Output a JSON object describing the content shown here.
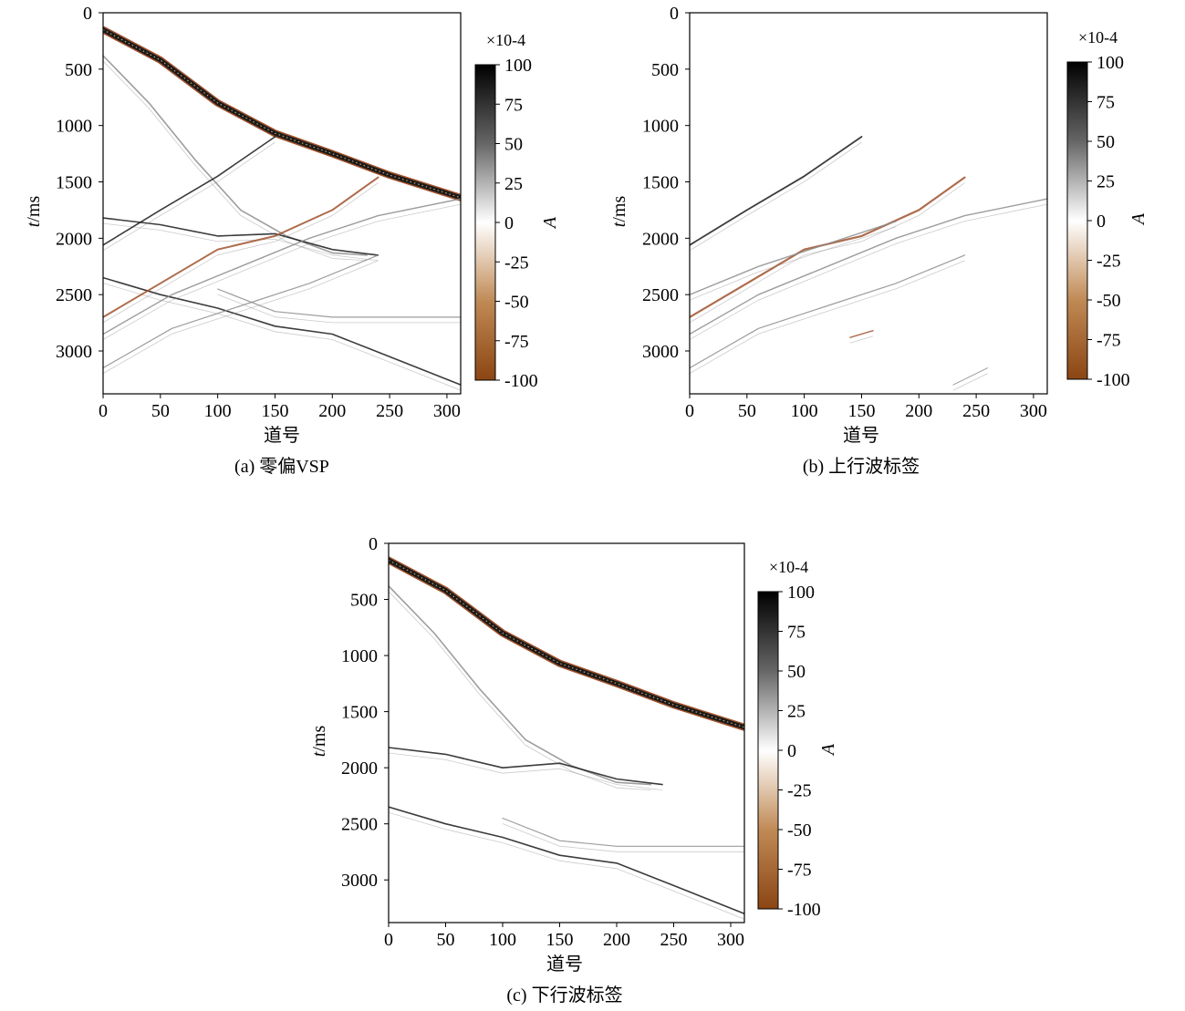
{
  "colors": {
    "background": "#ffffff",
    "axis": "#000000",
    "positive": "#000000",
    "zero": "#ffffff",
    "negative": "#8b4513",
    "event_dark": "#1a1a1a",
    "event_brown": "#a0522d",
    "event_gray": "#8c8c8c"
  },
  "chart_data": [
    {
      "type": "heatmap",
      "panel": "a",
      "caption": "(a) 零偏VSP",
      "xlabel": "道号",
      "ylabel_italic": "t",
      "ylabel_unit": "/ms",
      "xlim": [
        0,
        312
      ],
      "ylim": [
        3380,
        0
      ],
      "xticks": [
        "0",
        "50",
        "100",
        "150",
        "200",
        "250",
        "300"
      ],
      "xtick_values": [
        0,
        50,
        100,
        150,
        200,
        250,
        300
      ],
      "yticks": [
        "0",
        "500",
        "1000",
        "1500",
        "2000",
        "2500",
        "3000"
      ],
      "ytick_values": [
        0,
        500,
        1000,
        1500,
        2000,
        2500,
        3000
      ],
      "colorbar": {
        "label": "A",
        "multiplier": "×10-4",
        "range": [
          -100,
          100
        ],
        "ticks": [
          "100",
          "75",
          "50",
          "25",
          "0",
          "-25",
          "-50",
          "-75",
          "-100"
        ],
        "tick_values": [
          100,
          75,
          50,
          25,
          0,
          -25,
          -50,
          -75,
          -100
        ]
      },
      "events": [
        {
          "kind": "first-break",
          "color": "event_brown",
          "weight": 6,
          "points": [
            [
              0,
              150
            ],
            [
              50,
              420
            ],
            [
              100,
              800
            ],
            [
              150,
              1070
            ],
            [
              200,
              1250
            ],
            [
              250,
              1440
            ],
            [
              312,
              1640
            ]
          ]
        },
        {
          "kind": "downgoing",
          "color": "event_gray",
          "weight": 1.6,
          "points": [
            [
              0,
              380
            ],
            [
              40,
              800
            ],
            [
              80,
              1300
            ],
            [
              120,
              1750
            ],
            [
              160,
              1980
            ],
            [
              200,
              2130
            ],
            [
              230,
              2150
            ]
          ]
        },
        {
          "kind": "downgoing",
          "color": "event_dark",
          "weight": 1.6,
          "points": [
            [
              0,
              1820
            ],
            [
              50,
              1880
            ],
            [
              100,
              1980
            ],
            [
              150,
              1960
            ],
            [
              200,
              2100
            ],
            [
              240,
              2150
            ]
          ]
        },
        {
          "kind": "downgoing",
          "color": "event_dark",
          "weight": 1.6,
          "points": [
            [
              0,
              2350
            ],
            [
              50,
              2500
            ],
            [
              100,
              2620
            ],
            [
              150,
              2780
            ],
            [
              200,
              2850
            ],
            [
              250,
              3050
            ],
            [
              312,
              3300
            ]
          ]
        },
        {
          "kind": "downgoing",
          "color": "event_gray",
          "weight": 1.2,
          "points": [
            [
              100,
              2450
            ],
            [
              150,
              2650
            ],
            [
              200,
              2700
            ],
            [
              250,
              2700
            ],
            [
              312,
              2700
            ]
          ]
        },
        {
          "kind": "upgoing",
          "color": "event_dark",
          "weight": 1.6,
          "points": [
            [
              0,
              2060
            ],
            [
              50,
              1750
            ],
            [
              100,
              1450
            ],
            [
              150,
              1100
            ]
          ]
        },
        {
          "kind": "upgoing",
          "color": "event_brown",
          "weight": 2,
          "points": [
            [
              0,
              2700
            ],
            [
              50,
              2400
            ],
            [
              100,
              2100
            ],
            [
              150,
              1980
            ],
            [
              200,
              1750
            ],
            [
              240,
              1460
            ]
          ]
        },
        {
          "kind": "upgoing",
          "color": "event_gray",
          "weight": 1.4,
          "points": [
            [
              0,
              2850
            ],
            [
              60,
              2500
            ],
            [
              120,
              2250
            ],
            [
              180,
              2000
            ],
            [
              240,
              1800
            ],
            [
              312,
              1650
            ]
          ]
        },
        {
          "kind": "upgoing",
          "color": "event_gray",
          "weight": 1.2,
          "points": [
            [
              0,
              3150
            ],
            [
              60,
              2800
            ],
            [
              120,
              2600
            ],
            [
              180,
              2400
            ],
            [
              240,
              2150
            ]
          ]
        }
      ]
    },
    {
      "type": "heatmap",
      "panel": "b",
      "caption": "(b) 上行波标签",
      "xlabel": "道号",
      "ylabel_italic": "t",
      "ylabel_unit": "/ms",
      "xlim": [
        0,
        312
      ],
      "ylim": [
        3380,
        0
      ],
      "xticks": [
        "0",
        "50",
        "100",
        "150",
        "200",
        "250",
        "300"
      ],
      "xtick_values": [
        0,
        50,
        100,
        150,
        200,
        250,
        300
      ],
      "yticks": [
        "0",
        "500",
        "1000",
        "1500",
        "2000",
        "2500",
        "3000"
      ],
      "ytick_values": [
        0,
        500,
        1000,
        1500,
        2000,
        2500,
        3000
      ],
      "colorbar": {
        "label": "A",
        "multiplier": "×10-4",
        "range": [
          -100,
          100
        ],
        "ticks": [
          "100",
          "75",
          "50",
          "25",
          "0",
          "-25",
          "-50",
          "-75",
          "-100"
        ],
        "tick_values": [
          100,
          75,
          50,
          25,
          0,
          -25,
          -50,
          -75,
          -100
        ]
      },
      "events": [
        {
          "kind": "upgoing",
          "color": "event_dark",
          "weight": 1.8,
          "points": [
            [
              0,
              2060
            ],
            [
              50,
              1750
            ],
            [
              100,
              1450
            ],
            [
              150,
              1100
            ]
          ]
        },
        {
          "kind": "upgoing",
          "color": "event_brown",
          "weight": 2.2,
          "points": [
            [
              0,
              2700
            ],
            [
              50,
              2400
            ],
            [
              100,
              2100
            ],
            [
              150,
              1980
            ],
            [
              200,
              1750
            ],
            [
              240,
              1460
            ]
          ]
        },
        {
          "kind": "upgoing",
          "color": "event_gray",
          "weight": 1.4,
          "points": [
            [
              0,
              2500
            ],
            [
              60,
              2250
            ],
            [
              120,
              2050
            ],
            [
              180,
              1850
            ]
          ]
        },
        {
          "kind": "upgoing",
          "color": "event_gray",
          "weight": 1.4,
          "points": [
            [
              0,
              2850
            ],
            [
              60,
              2500
            ],
            [
              120,
              2250
            ],
            [
              180,
              2000
            ],
            [
              240,
              1800
            ],
            [
              312,
              1650
            ]
          ]
        },
        {
          "kind": "upgoing",
          "color": "event_gray",
          "weight": 1.2,
          "points": [
            [
              0,
              3150
            ],
            [
              60,
              2800
            ],
            [
              120,
              2600
            ],
            [
              180,
              2400
            ],
            [
              240,
              2150
            ]
          ]
        },
        {
          "kind": "upgoing",
          "color": "event_brown",
          "weight": 1.4,
          "points": [
            [
              140,
              2880
            ],
            [
              160,
              2820
            ]
          ]
        },
        {
          "kind": "upgoing",
          "color": "event_gray",
          "weight": 1,
          "points": [
            [
              230,
              3300
            ],
            [
              260,
              3150
            ]
          ]
        }
      ]
    },
    {
      "type": "heatmap",
      "panel": "c",
      "caption": "(c) 下行波标签",
      "xlabel": "道号",
      "ylabel_italic": "t",
      "ylabel_unit": "/ms",
      "xlim": [
        0,
        312
      ],
      "ylim": [
        3380,
        0
      ],
      "xticks": [
        "0",
        "50",
        "100",
        "150",
        "200",
        "250",
        "300"
      ],
      "xtick_values": [
        0,
        50,
        100,
        150,
        200,
        250,
        300
      ],
      "yticks": [
        "0",
        "500",
        "1000",
        "1500",
        "2000",
        "2500",
        "3000"
      ],
      "ytick_values": [
        0,
        500,
        1000,
        1500,
        2000,
        2500,
        3000
      ],
      "colorbar": {
        "label": "A",
        "multiplier": "×10-4",
        "range": [
          -100,
          100
        ],
        "ticks": [
          "100",
          "75",
          "50",
          "25",
          "0",
          "-25",
          "-50",
          "-75",
          "-100"
        ],
        "tick_values": [
          100,
          75,
          50,
          25,
          0,
          -25,
          -50,
          -75,
          -100
        ]
      },
      "events": [
        {
          "kind": "first-break",
          "color": "event_brown",
          "weight": 6,
          "points": [
            [
              0,
              150
            ],
            [
              50,
              420
            ],
            [
              100,
              800
            ],
            [
              150,
              1070
            ],
            [
              200,
              1250
            ],
            [
              250,
              1440
            ],
            [
              312,
              1640
            ]
          ]
        },
        {
          "kind": "downgoing",
          "color": "event_gray",
          "weight": 1.6,
          "points": [
            [
              0,
              380
            ],
            [
              40,
              800
            ],
            [
              80,
              1300
            ],
            [
              120,
              1750
            ],
            [
              160,
              1980
            ],
            [
              200,
              2130
            ],
            [
              230,
              2150
            ]
          ]
        },
        {
          "kind": "downgoing",
          "color": "event_dark",
          "weight": 1.6,
          "points": [
            [
              0,
              1820
            ],
            [
              50,
              1880
            ],
            [
              100,
              2000
            ],
            [
              150,
              1960
            ],
            [
              200,
              2100
            ],
            [
              240,
              2150
            ]
          ]
        },
        {
          "kind": "downgoing",
          "color": "event_dark",
          "weight": 1.6,
          "points": [
            [
              0,
              2350
            ],
            [
              50,
              2500
            ],
            [
              100,
              2620
            ],
            [
              150,
              2780
            ],
            [
              200,
              2850
            ],
            [
              250,
              3050
            ],
            [
              312,
              3300
            ]
          ]
        },
        {
          "kind": "downgoing",
          "color": "event_gray",
          "weight": 1.2,
          "points": [
            [
              100,
              2450
            ],
            [
              150,
              2650
            ],
            [
              200,
              2700
            ],
            [
              250,
              2700
            ],
            [
              312,
              2700
            ]
          ]
        }
      ]
    }
  ]
}
